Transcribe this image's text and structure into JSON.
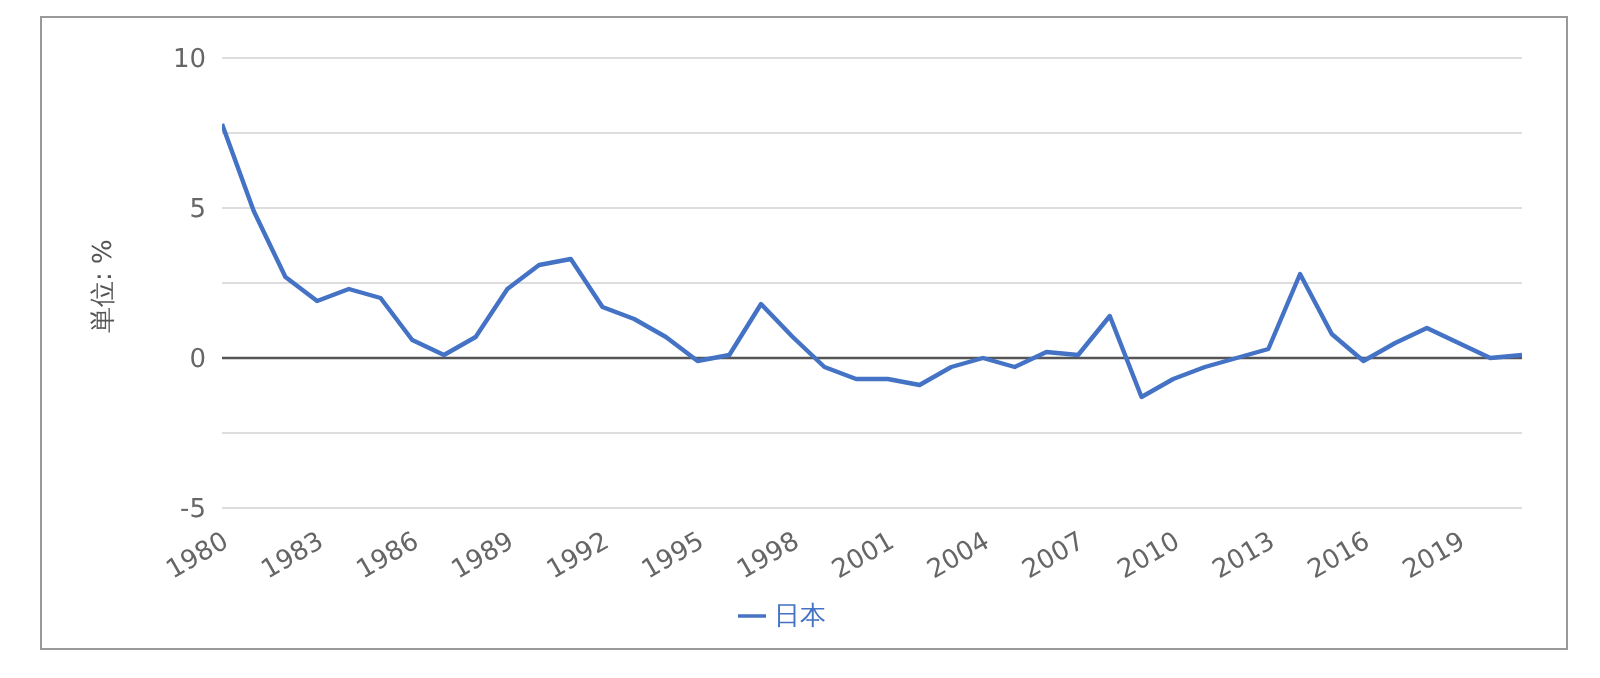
{
  "chart_data": {
    "type": "line",
    "ylabel": "単位: %",
    "x": [
      1980,
      1981,
      1982,
      1983,
      1984,
      1985,
      1986,
      1987,
      1988,
      1989,
      1990,
      1991,
      1992,
      1993,
      1994,
      1995,
      1996,
      1997,
      1998,
      1999,
      2000,
      2001,
      2002,
      2003,
      2004,
      2005,
      2006,
      2007,
      2008,
      2009,
      2010,
      2011,
      2012,
      2013,
      2014,
      2015,
      2016,
      2017,
      2018,
      2019,
      2020,
      2021
    ],
    "series": [
      {
        "name": "日本",
        "color": "#4472c4",
        "values": [
          7.8,
          4.9,
          2.7,
          1.9,
          2.3,
          2.0,
          0.6,
          0.1,
          0.7,
          2.3,
          3.1,
          3.3,
          1.7,
          1.3,
          0.7,
          -0.1,
          0.1,
          1.8,
          0.7,
          -0.3,
          -0.7,
          -0.7,
          -0.9,
          -0.3,
          0.0,
          -0.3,
          0.2,
          0.1,
          1.4,
          -1.3,
          -0.7,
          -0.3,
          0.0,
          0.3,
          2.8,
          0.8,
          -0.1,
          0.5,
          1.0,
          0.5,
          0.0,
          0.1
        ]
      }
    ],
    "xlim": [
      1980,
      2021
    ],
    "xticks": [
      1980,
      1983,
      1986,
      1989,
      1992,
      1995,
      1998,
      2001,
      2004,
      2007,
      2010,
      2013,
      2016,
      2019
    ],
    "ylim": [
      -5,
      10
    ],
    "yticks": [
      -5,
      {
        "value": -2.5,
        "label": null
      },
      0,
      {
        "value": 2.5,
        "label": null
      },
      5,
      {
        "value": 7.5,
        "label": null
      },
      10
    ],
    "ref_lines": [
      {
        "axis": "y",
        "value": 0,
        "color": "#555555"
      }
    ],
    "grid": "y",
    "legend": "bottom",
    "marker": "none",
    "line_style": "solid"
  }
}
